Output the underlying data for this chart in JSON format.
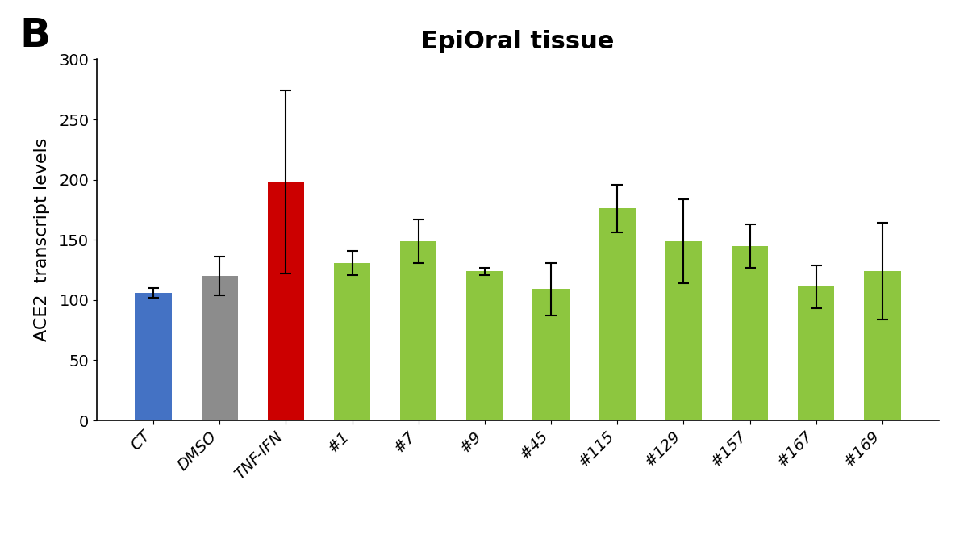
{
  "categories": [
    "CT",
    "DMSO",
    "TNF-IFN",
    "#1",
    "#7",
    "#9",
    "#45",
    "#115",
    "#129",
    "#157",
    "#167",
    "#169"
  ],
  "values": [
    106,
    120,
    198,
    131,
    149,
    124,
    109,
    176,
    149,
    145,
    111,
    124
  ],
  "errors": [
    4,
    16,
    76,
    10,
    18,
    3,
    22,
    20,
    35,
    18,
    18,
    40
  ],
  "colors": [
    "#4472c4",
    "#8c8c8c",
    "#cc0000",
    "#8dc63f",
    "#8dc63f",
    "#8dc63f",
    "#8dc63f",
    "#8dc63f",
    "#8dc63f",
    "#8dc63f",
    "#8dc63f",
    "#8dc63f"
  ],
  "title": "EpiOral tissue",
  "ylabel": "ACE2  transcript levels",
  "ylim": [
    0,
    300
  ],
  "yticks": [
    0,
    50,
    100,
    150,
    200,
    250,
    300
  ],
  "title_fontsize": 22,
  "label_fontsize": 16,
  "tick_fontsize": 14,
  "bar_width": 0.55,
  "figsize": [
    12.0,
    6.68
  ],
  "dpi": 100,
  "background_color": "#ffffff",
  "label_B": "B",
  "B_fontsize": 36
}
